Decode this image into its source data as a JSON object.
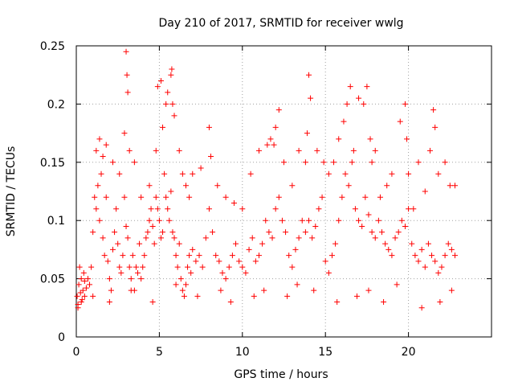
{
  "chart_data": {
    "type": "scatter",
    "title": "Day 210 of 2017, SRMTID for receiver wwlg",
    "xlabel": "GPS time / hours",
    "ylabel": "SRMTID / TECUs",
    "xlim": [
      0,
      25
    ],
    "ylim": [
      0,
      0.25
    ],
    "xticks": [
      0,
      5,
      10,
      15,
      20
    ],
    "xtick_labels": [
      "0",
      "5",
      "10",
      "15",
      "20"
    ],
    "yticks": [
      0,
      0.05,
      0.1,
      0.15,
      0.2,
      0.25
    ],
    "ytick_labels": [
      "0",
      "0.05",
      "0.1",
      "0.15",
      "0.2",
      "0.25"
    ],
    "grid": true,
    "marker": "plus",
    "color": "#ff0000",
    "series": [
      {
        "name": "SRMTID",
        "x": [
          0.05,
          0.1,
          0.15,
          0.2,
          0.25,
          0.3,
          0.35,
          0.4,
          0.45,
          0.5,
          0.6,
          0.7,
          0.8,
          0.9,
          1.0,
          1.1,
          1.2,
          1.3,
          1.4,
          1.5,
          1.6,
          1.7,
          1.8,
          1.9,
          2.0,
          2.1,
          2.2,
          2.3,
          2.4,
          2.5,
          2.6,
          2.7,
          2.8,
          2.9,
          3.0,
          3.1,
          3.2,
          3.3,
          3.4,
          3.5,
          3.6,
          3.7,
          3.8,
          3.9,
          4.0,
          4.1,
          4.2,
          4.3,
          4.4,
          4.5,
          4.6,
          4.7,
          4.8,
          4.9,
          5.0,
          5.1,
          5.2,
          5.3,
          5.4,
          5.5,
          5.6,
          5.7,
          5.8,
          5.9,
          6.0,
          6.1,
          6.2,
          6.3,
          6.4,
          6.5,
          6.6,
          6.7,
          6.8,
          6.9,
          7.0,
          7.2,
          7.4,
          7.6,
          7.8,
          8.0,
          8.2,
          8.4,
          8.6,
          8.8,
          9.0,
          9.2,
          9.4,
          9.6,
          9.8,
          10.0,
          10.2,
          10.4,
          10.6,
          10.8,
          11.0,
          11.2,
          11.4,
          11.6,
          11.8,
          12.0,
          12.2,
          12.4,
          12.6,
          12.8,
          13.0,
          13.2,
          13.4,
          13.6,
          13.8,
          14.0,
          14.2,
          14.4,
          14.6,
          14.8,
          15.0,
          15.2,
          15.4,
          15.6,
          15.8,
          16.0,
          16.2,
          16.4,
          16.6,
          16.8,
          17.0,
          17.2,
          17.4,
          17.6,
          17.8,
          18.0,
          18.2,
          18.4,
          18.6,
          18.8,
          19.0,
          19.2,
          19.4,
          19.6,
          19.8,
          20.0,
          20.2,
          20.4,
          20.6,
          20.8,
          21.0,
          21.2,
          21.4,
          21.6,
          21.8,
          22.0,
          22.2,
          22.4,
          22.6,
          22.8,
          0.1,
          0.3,
          0.5,
          1.2,
          1.4,
          1.6,
          1.8,
          2.2,
          2.6,
          2.9,
          3.0,
          3.05,
          3.1,
          3.2,
          3.5,
          3.9,
          4.4,
          4.8,
          4.9,
          5.1,
          5.2,
          5.4,
          5.5,
          5.7,
          5.75,
          5.8,
          5.9,
          6.2,
          6.4,
          6.6,
          6.8,
          7.0,
          7.5,
          8.0,
          8.1,
          8.5,
          9.0,
          9.5,
          10.0,
          10.5,
          11.0,
          11.5,
          11.7,
          11.9,
          12.0,
          12.2,
          12.5,
          13.0,
          13.4,
          13.8,
          13.9,
          14.0,
          14.1,
          14.5,
          14.9,
          15.2,
          15.5,
          15.8,
          16.1,
          16.3,
          16.5,
          16.7,
          17.0,
          17.3,
          17.5,
          17.7,
          17.8,
          18.0,
          18.3,
          18.7,
          19.0,
          19.5,
          19.8,
          19.9,
          20.0,
          20.3,
          20.6,
          21.0,
          21.3,
          21.5,
          21.6,
          21.8,
          22.2,
          22.5,
          22.8,
          1.0,
          2.0,
          3.3,
          4.6,
          6.0,
          7.3,
          8.7,
          9.3,
          10.7,
          11.3,
          12.7,
          13.3,
          14.3,
          15.7,
          16.9,
          17.6,
          18.5,
          19.3,
          20.8,
          21.9,
          22.6
        ],
        "y": [
          0.035,
          0.028,
          0.045,
          0.06,
          0.038,
          0.05,
          0.032,
          0.04,
          0.055,
          0.048,
          0.042,
          0.05,
          0.045,
          0.06,
          0.09,
          0.12,
          0.11,
          0.13,
          0.1,
          0.14,
          0.085,
          0.07,
          0.12,
          0.065,
          0.05,
          0.04,
          0.075,
          0.09,
          0.11,
          0.08,
          0.06,
          0.055,
          0.07,
          0.12,
          0.095,
          0.085,
          0.06,
          0.05,
          0.07,
          0.04,
          0.06,
          0.055,
          0.08,
          0.05,
          0.06,
          0.07,
          0.085,
          0.09,
          0.1,
          0.11,
          0.095,
          0.08,
          0.12,
          0.11,
          0.1,
          0.085,
          0.09,
          0.14,
          0.12,
          0.11,
          0.1,
          0.125,
          0.09,
          0.085,
          0.07,
          0.06,
          0.08,
          0.05,
          0.04,
          0.035,
          0.045,
          0.06,
          0.07,
          0.055,
          0.075,
          0.065,
          0.07,
          0.06,
          0.085,
          0.11,
          0.09,
          0.07,
          0.065,
          0.055,
          0.05,
          0.06,
          0.07,
          0.08,
          0.065,
          0.06,
          0.055,
          0.075,
          0.085,
          0.065,
          0.07,
          0.08,
          0.1,
          0.09,
          0.085,
          0.11,
          0.12,
          0.1,
          0.09,
          0.07,
          0.06,
          0.075,
          0.085,
          0.1,
          0.09,
          0.1,
          0.085,
          0.095,
          0.11,
          0.12,
          0.065,
          0.055,
          0.07,
          0.08,
          0.1,
          0.12,
          0.14,
          0.13,
          0.15,
          0.11,
          0.1,
          0.095,
          0.12,
          0.105,
          0.09,
          0.085,
          0.1,
          0.09,
          0.08,
          0.075,
          0.07,
          0.085,
          0.09,
          0.1,
          0.095,
          0.11,
          0.08,
          0.07,
          0.065,
          0.075,
          0.06,
          0.08,
          0.07,
          0.065,
          0.055,
          0.06,
          0.07,
          0.08,
          0.075,
          0.07,
          0.025,
          0.03,
          0.035,
          0.16,
          0.17,
          0.155,
          0.165,
          0.15,
          0.14,
          0.175,
          0.245,
          0.225,
          0.21,
          0.16,
          0.15,
          0.12,
          0.13,
          0.16,
          0.215,
          0.22,
          0.18,
          0.2,
          0.21,
          0.225,
          0.23,
          0.2,
          0.19,
          0.16,
          0.14,
          0.13,
          0.12,
          0.14,
          0.145,
          0.18,
          0.155,
          0.13,
          0.12,
          0.115,
          0.11,
          0.14,
          0.16,
          0.165,
          0.17,
          0.165,
          0.18,
          0.195,
          0.15,
          0.13,
          0.16,
          0.15,
          0.175,
          0.225,
          0.205,
          0.16,
          0.15,
          0.14,
          0.15,
          0.17,
          0.185,
          0.2,
          0.215,
          0.16,
          0.205,
          0.2,
          0.215,
          0.17,
          0.15,
          0.16,
          0.12,
          0.13,
          0.14,
          0.185,
          0.2,
          0.17,
          0.14,
          0.11,
          0.15,
          0.125,
          0.16,
          0.195,
          0.18,
          0.14,
          0.15,
          0.13,
          0.13,
          0.035,
          0.03,
          0.04,
          0.03,
          0.045,
          0.035,
          0.04,
          0.03,
          0.035,
          0.04,
          0.035,
          0.045,
          0.04,
          0.03,
          0.035,
          0.04,
          0.03,
          0.045,
          0.025,
          0.03,
          0.04
        ]
      }
    ]
  }
}
